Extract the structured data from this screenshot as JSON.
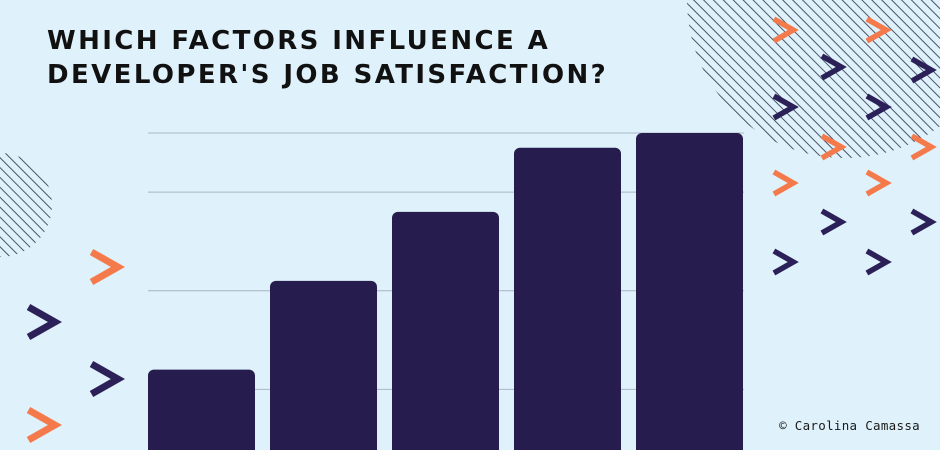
{
  "title_lines": [
    "WHICH FACTORS INFLUENCE A",
    "DEVELOPER'S JOB SATISFACTION?"
  ],
  "credit": "© Carolina Camassa",
  "colors": {
    "background": "#dff1fb",
    "bar": "#261c4e",
    "grid": "#a9b6c4",
    "accent_orange": "#f47a4b",
    "accent_navy": "#2b2057",
    "title": "#111111"
  },
  "chart_data": {
    "type": "bar",
    "title": "",
    "xlabel": "",
    "ylabel": "",
    "categories": [
      "",
      "",
      "",
      "",
      ""
    ],
    "values": [
      12,
      21,
      28,
      34.5,
      36
    ],
    "ylim": [
      0,
      36
    ],
    "grid": true,
    "gridlines": [
      0,
      10,
      20,
      30,
      36
    ],
    "legend": "none"
  }
}
